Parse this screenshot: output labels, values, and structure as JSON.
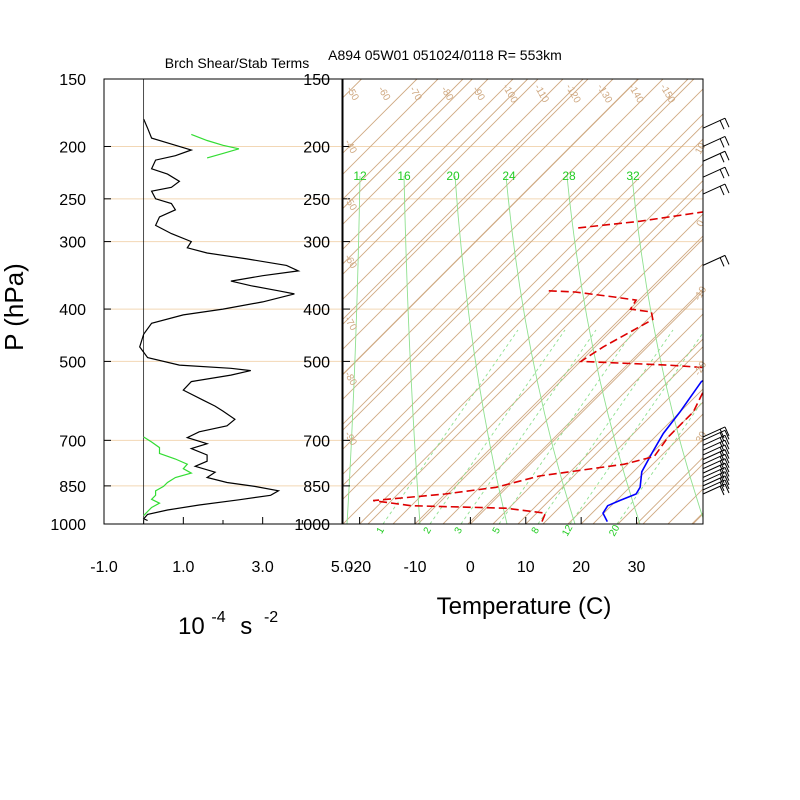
{
  "chart_data": [
    {
      "type": "line",
      "title": "Brch Shear/Stab Terms",
      "xlabel_base": "10",
      "xlabel_exp": "-4",
      "xlabel_unit": "s",
      "xlabel_unit_exp": "-2",
      "ylabel": "P (hPa)",
      "xlim": [
        -1.0,
        5.0
      ],
      "xticks": [
        "-1.0",
        "1.0",
        "3.0",
        "5.0"
      ],
      "pressure_levels": [
        "150",
        "200",
        "250",
        "300",
        "400",
        "500",
        "700",
        "850",
        "1000"
      ],
      "series": [
        {
          "color": "#000000",
          "points": [
            [
              0.0,
              178
            ],
            [
              0.1,
              185
            ],
            [
              0.2,
              193
            ],
            [
              0.7,
              198
            ],
            [
              1.2,
              203
            ],
            [
              0.8,
              208
            ],
            [
              0.3,
              212
            ],
            [
              0.2,
              220
            ],
            [
              0.6,
              225
            ],
            [
              0.9,
              232
            ],
            [
              0.7,
              238
            ],
            [
              0.2,
              242
            ],
            [
              0.3,
              250
            ],
            [
              0.7,
              255
            ],
            [
              0.8,
              262
            ],
            [
              0.4,
              270
            ],
            [
              0.3,
              280
            ],
            [
              0.7,
              290
            ],
            [
              1.2,
              300
            ],
            [
              1.1,
              308
            ],
            [
              1.6,
              315
            ],
            [
              2.6,
              323
            ],
            [
              3.6,
              332
            ],
            [
              3.9,
              340
            ],
            [
              3.0,
              347
            ],
            [
              2.2,
              355
            ],
            [
              2.7,
              362
            ],
            [
              3.4,
              370
            ],
            [
              3.8,
              375
            ],
            [
              3.0,
              388
            ],
            [
              2.0,
              400
            ],
            [
              1.0,
              410
            ],
            [
              0.2,
              425
            ],
            [
              0.0,
              445
            ],
            [
              -0.1,
              470
            ],
            [
              0.1,
              492
            ],
            [
              0.9,
              508
            ],
            [
              2.2,
              515
            ],
            [
              2.7,
              520
            ],
            [
              2.2,
              530
            ],
            [
              1.2,
              545
            ],
            [
              1.0,
              565
            ],
            [
              1.5,
              590
            ],
            [
              1.8,
              605
            ],
            [
              2.0,
              618
            ],
            [
              2.3,
              640
            ],
            [
              2.1,
              658
            ],
            [
              1.4,
              675
            ],
            [
              1.1,
              692
            ],
            [
              1.6,
              710
            ],
            [
              1.2,
              725
            ],
            [
              1.6,
              745
            ],
            [
              1.6,
              765
            ],
            [
              1.3,
              782
            ],
            [
              1.8,
              802
            ],
            [
              1.6,
              820
            ],
            [
              2.1,
              838
            ],
            [
              2.8,
              852
            ],
            [
              3.4,
              868
            ],
            [
              3.2,
              885
            ],
            [
              2.4,
              902
            ],
            [
              1.4,
              922
            ],
            [
              0.6,
              942
            ],
            [
              0.1,
              960
            ],
            [
              0.0,
              978
            ],
            [
              0.1,
              985
            ]
          ]
        },
        {
          "color": "#33dd33",
          "points": [
            [
              1.2,
              190
            ],
            [
              1.6,
              195
            ],
            [
              2.0,
              199
            ],
            [
              2.4,
              202
            ],
            [
              2.0,
              206
            ],
            [
              1.6,
              210
            ]
          ]
        },
        {
          "color": "#33dd33",
          "points": [
            [
              0.0,
              690
            ],
            [
              0.2,
              705
            ],
            [
              0.4,
              722
            ],
            [
              0.4,
              740
            ],
            [
              0.8,
              758
            ],
            [
              1.1,
              775
            ],
            [
              1.0,
              790
            ],
            [
              1.2,
              805
            ],
            [
              0.8,
              820
            ],
            [
              0.6,
              838
            ],
            [
              0.5,
              852
            ],
            [
              0.3,
              868
            ],
            [
              0.3,
              885
            ],
            [
              0.2,
              900
            ],
            [
              0.4,
              915
            ],
            [
              0.2,
              932
            ],
            [
              0.1,
              948
            ],
            [
              0.0,
              965
            ]
          ]
        }
      ]
    },
    {
      "type": "line",
      "title": "A894 05W01 051024/0118 R= 553km",
      "xlabel": "Temperature (C)",
      "xlim": [
        -23,
        42
      ],
      "xticks": [
        "-20",
        "-10",
        "0",
        "10",
        "20",
        "30"
      ],
      "pressure_levels": [
        "150",
        "200",
        "250",
        "300",
        "400",
        "500",
        "700",
        "850",
        "1000"
      ],
      "isotherm_labels": [
        "-50",
        "-60",
        "-70",
        "-80",
        "-90",
        "-100",
        "-110",
        "-120",
        "-130",
        "-140",
        "-150"
      ],
      "isotherm_values": [
        -50,
        -60,
        -70,
        -80,
        -90,
        -100,
        -110,
        -120,
        -130,
        -140,
        -150
      ],
      "isotherm_left_labels": [
        "-40",
        "-50",
        "-60",
        "-70",
        "-80",
        "-90"
      ],
      "isotherm_left_values": [
        -40,
        -50,
        -60,
        -70,
        -80,
        -90
      ],
      "theta_labels": [
        "10",
        "0",
        "-10",
        "-20",
        "-30"
      ],
      "theta_values": [
        10,
        0,
        -10,
        -20,
        -30
      ],
      "moist_adiabat_labels": [
        "12",
        "16",
        "20",
        "24",
        "28",
        "32"
      ],
      "moist_adiabat_values": [
        12,
        16,
        20,
        24,
        28,
        32
      ],
      "mixing_ratio_labels": [
        "1",
        "2",
        "3",
        "5",
        "8",
        "12",
        "20"
      ],
      "mixing_ratio_values": [
        1,
        2,
        3,
        5,
        8,
        12,
        20
      ],
      "series": [
        {
          "color": "#0000ff",
          "points": [
            [
              24.3,
              990
            ],
            [
              22.0,
              955
            ],
            [
              21.5,
              925
            ],
            [
              22.7,
              905
            ],
            [
              24.5,
              880
            ],
            [
              24.0,
              855
            ],
            [
              21.5,
              800
            ],
            [
              20.0,
              740
            ],
            [
              18.5,
              680
            ],
            [
              17.6,
              620
            ],
            [
              16.0,
              545
            ],
            [
              17.5,
              520
            ],
            [
              15.5,
              485
            ],
            [
              12.5,
              445
            ],
            [
              11.5,
              410
            ],
            [
              12.0,
              380
            ],
            [
              12.3,
              355
            ],
            [
              13.2,
              335
            ],
            [
              14.3,
              325
            ],
            [
              12.5,
              295
            ],
            [
              10.5,
              270
            ],
            [
              8.6,
              245
            ],
            [
              6.3,
              225
            ],
            [
              5.0,
              210
            ],
            [
              3.6,
              195
            ],
            [
              2.3,
              185
            ],
            [
              -0.7,
              170
            ]
          ]
        },
        {
          "color": "#dd0000",
          "dashed": true,
          "points": [
            [
              12.5,
              990
            ],
            [
              11.6,
              955
            ],
            [
              3.5,
              935
            ],
            [
              -14.0,
              925
            ],
            [
              -21.8,
              905
            ],
            [
              -10.0,
              880
            ],
            [
              -2.0,
              855
            ],
            [
              3.8,
              815
            ],
            [
              17.0,
              775
            ],
            [
              21.0,
              750
            ],
            [
              20.0,
              690
            ],
            [
              20.0,
              620
            ],
            [
              18.0,
              565
            ],
            [
              17.0,
              530
            ],
            [
              16.0,
              515
            ],
            [
              7.0,
              508
            ],
            [
              -9.4,
              500
            ],
            [
              -8.0,
              470
            ],
            [
              -6.5,
              450
            ],
            [
              -4.0,
              418
            ],
            [
              -5.6,
              405
            ],
            [
              -9.9,
              400
            ],
            [
              -10.5,
              385
            ],
            [
              -15.0,
              380
            ],
            [
              -23.0,
              372
            ],
            [
              -28.0,
              370
            ]
          ],
          "upper_points": [
            [
              -34.0,
              283
            ],
            [
              -24.0,
              275
            ],
            [
              -14.0,
              264
            ],
            [
              -2.0,
              255
            ],
            [
              3.8,
              245
            ],
            [
              2.0,
              235
            ],
            [
              0.5,
              230
            ],
            [
              -0.5,
              225
            ],
            [
              -3.0,
              218
            ],
            [
              -4.7,
              210
            ],
            [
              -4.5,
              202
            ],
            [
              -5.4,
              196
            ],
            [
              -7.0,
              188
            ]
          ]
        }
      ],
      "wind_barbs_levels": [
        185,
        200,
        213,
        228,
        245,
        332,
        690,
        700,
        715,
        730,
        745,
        760,
        775,
        790,
        805,
        820,
        835,
        850,
        865,
        880
      ]
    }
  ]
}
